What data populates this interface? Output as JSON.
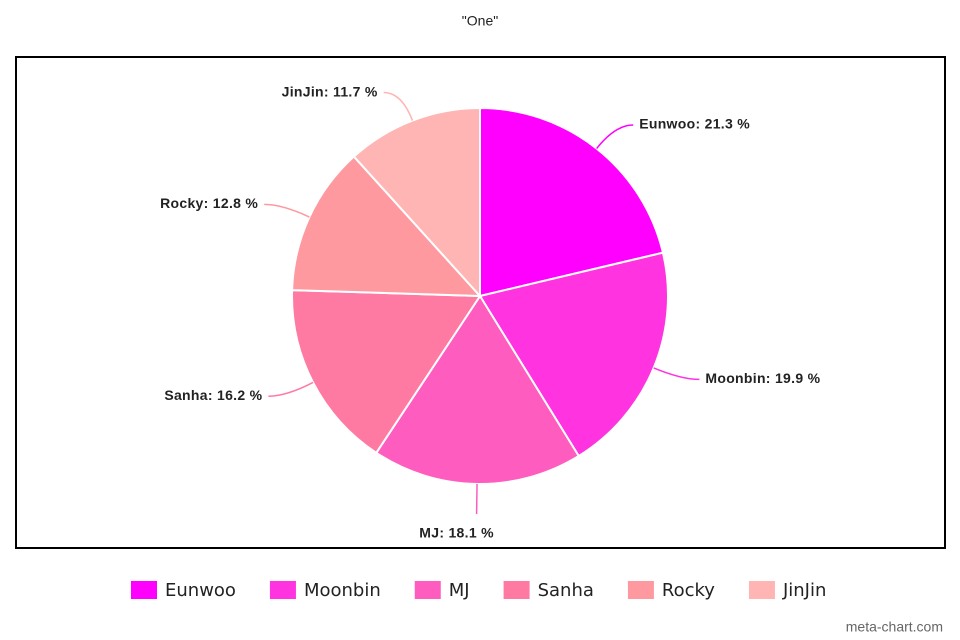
{
  "chart_data": {
    "type": "pie",
    "title": "\"One\"",
    "categories": [
      "Eunwoo",
      "Moonbin",
      "MJ",
      "Sanha",
      "Rocky",
      "JinJin"
    ],
    "values": [
      21.3,
      19.9,
      18.1,
      16.2,
      12.8,
      11.7
    ],
    "value_labels": [
      "Eunwoo: 21.3 %",
      "Moonbin: 19.9 %",
      "MJ: 18.1 %",
      "Sanha: 16.2 %",
      "Rocky: 12.8 %",
      "JinJin: 11.7 %"
    ],
    "colors": [
      "#ff00ff",
      "#ff33e0",
      "#ff5cbf",
      "#ff7aa3",
      "#ff99a0",
      "#ffb5b3"
    ],
    "legend": "bottom",
    "watermark": "meta-chart.com"
  }
}
